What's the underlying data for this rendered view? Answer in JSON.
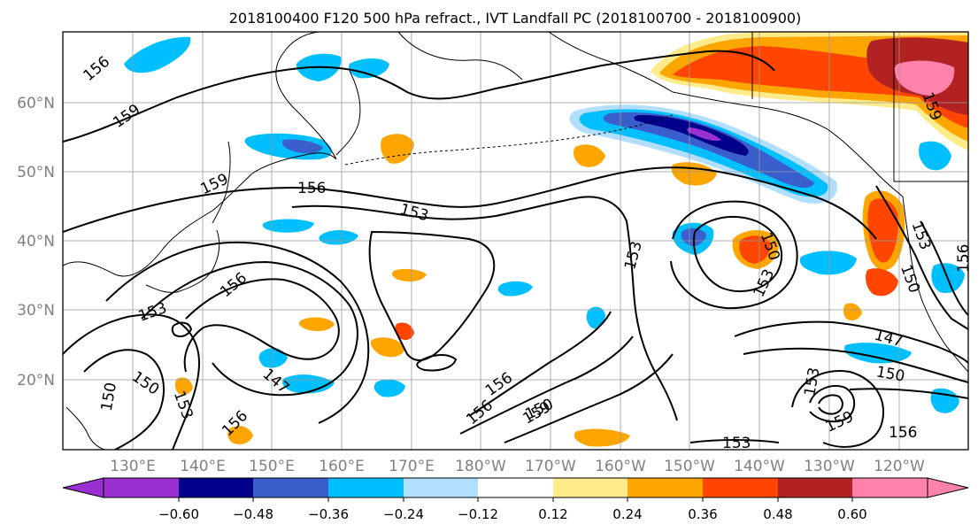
{
  "title": "2018100400 F120 500 hPa refract., IVT Landfall PC (2018100700 - 2018100900)",
  "map": {
    "lat_labels": [
      "60°N",
      "50°N",
      "40°N",
      "30°N",
      "20°N"
    ],
    "lon_labels": [
      "130°E",
      "140°E",
      "150°E",
      "160°E",
      "170°E",
      "180°W",
      "170°W",
      "160°W",
      "150°W",
      "140°W",
      "130°W",
      "120°W"
    ],
    "contour_labels": [
      "156",
      "159",
      "159",
      "156",
      "153",
      "156",
      "153",
      "150",
      "147",
      "153",
      "156",
      "150",
      "156",
      "153",
      "156",
      "150",
      "153",
      "150",
      "159",
      "150",
      "153",
      "147",
      "150",
      "159",
      "156",
      "153",
      "153",
      "156",
      "159"
    ],
    "colors": {
      "purple": "#9b30d0",
      "navy": "#00008b",
      "blue": "#3a5fcd",
      "deepskyblue": "#00bfff",
      "lightblue": "#b2dfff",
      "white": "#ffffff",
      "yellow": "#ffeb8a",
      "orange": "#ffa500",
      "orangered": "#ff4500",
      "firebrick": "#b22222",
      "pink": "#ff82ab"
    }
  },
  "colorbar": {
    "ticks": [
      "−0.60",
      "−0.48",
      "−0.36",
      "−0.24",
      "−0.12",
      "0.12",
      "0.24",
      "0.36",
      "0.48",
      "0.60"
    ],
    "colors": [
      "#9b30d0",
      "#00008b",
      "#3a5fcd",
      "#00bfff",
      "#b2dfff",
      "#ffffff",
      "#ffeb8a",
      "#ffa500",
      "#ff4500",
      "#b22222",
      "#ff82ab"
    ]
  }
}
